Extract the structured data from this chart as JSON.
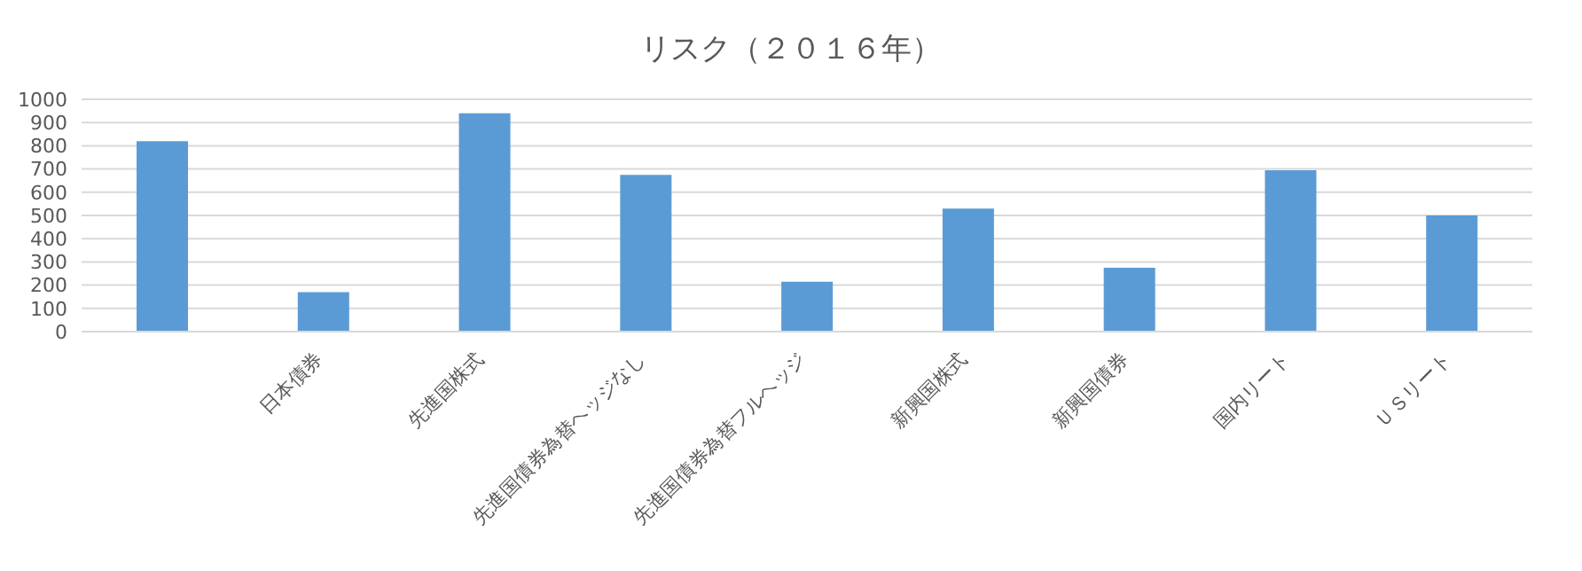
{
  "chart_data": {
    "type": "bar",
    "title": "リスク（２０１６年）",
    "categories": [
      null,
      "日本債券",
      "先進国株式",
      "先進国債券為替ヘッジなし",
      "先進国債券為替フルヘッジ",
      "新興国株式",
      "新興国債券",
      "国内リート",
      "ＵＳリート"
    ],
    "values": [
      820,
      170,
      940,
      675,
      215,
      530,
      275,
      695,
      500
    ],
    "color": "#5b9bd5",
    "ylim": [
      0,
      1000
    ],
    "yticks": [
      0,
      100,
      200,
      300,
      400,
      500,
      600,
      700,
      800,
      900,
      1000
    ],
    "grid": "y"
  }
}
